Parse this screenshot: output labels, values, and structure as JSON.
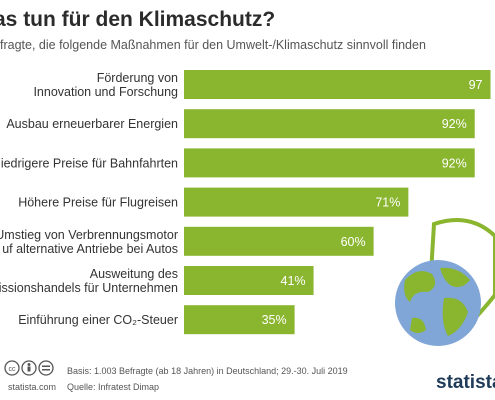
{
  "header": {
    "title": "as tun für den Klimaschutz?",
    "subtitle": "fragte, die folgende Maßnahmen für den Umwelt-/Klimaschutz sinnvoll finden"
  },
  "chart_data": {
    "type": "bar",
    "orientation": "horizontal",
    "categories": [
      [
        "Förderung von",
        "Innovation und Forschung"
      ],
      [
        "Ausbau erneuerbarer Energien"
      ],
      [
        "iedrigere Preise für Bahnfahrten"
      ],
      [
        "Höhere Preise für Flugreisen"
      ],
      [
        "Umstieg von Verbrennungsmotor",
        "uf alternative Antriebe bei Autos"
      ],
      [
        "Ausweitung des",
        "issionshandels für Unternehmen"
      ],
      [
        "Einführung einer CO₂-Steuer"
      ]
    ],
    "values": [
      97,
      92,
      92,
      71,
      60,
      41,
      35
    ],
    "value_labels": [
      "97",
      "92%",
      "92%",
      "71%",
      "60%",
      "41%",
      "35%"
    ],
    "xlim": [
      0,
      100
    ],
    "bar_color": "#8ab52f",
    "value_label_color": "#ffffff",
    "grid": false,
    "legend": "none"
  },
  "footer": {
    "basis": "Basis: 1.003 Befragte (ab 18 Jahren) in Deutschland; 29.-30. Juli 2019",
    "source": "Quelle: Infratest Dimap",
    "site": "statista.com",
    "brand": "statista"
  },
  "icons": {
    "license": [
      "cc-icon",
      "attribution-icon",
      "no-derivatives-icon"
    ],
    "illustration": [
      "shield-icon",
      "globe-icon"
    ],
    "colors": {
      "shield": "#8ab52f",
      "ocean": "#7fa6d6",
      "land": "#8ab52f"
    }
  }
}
